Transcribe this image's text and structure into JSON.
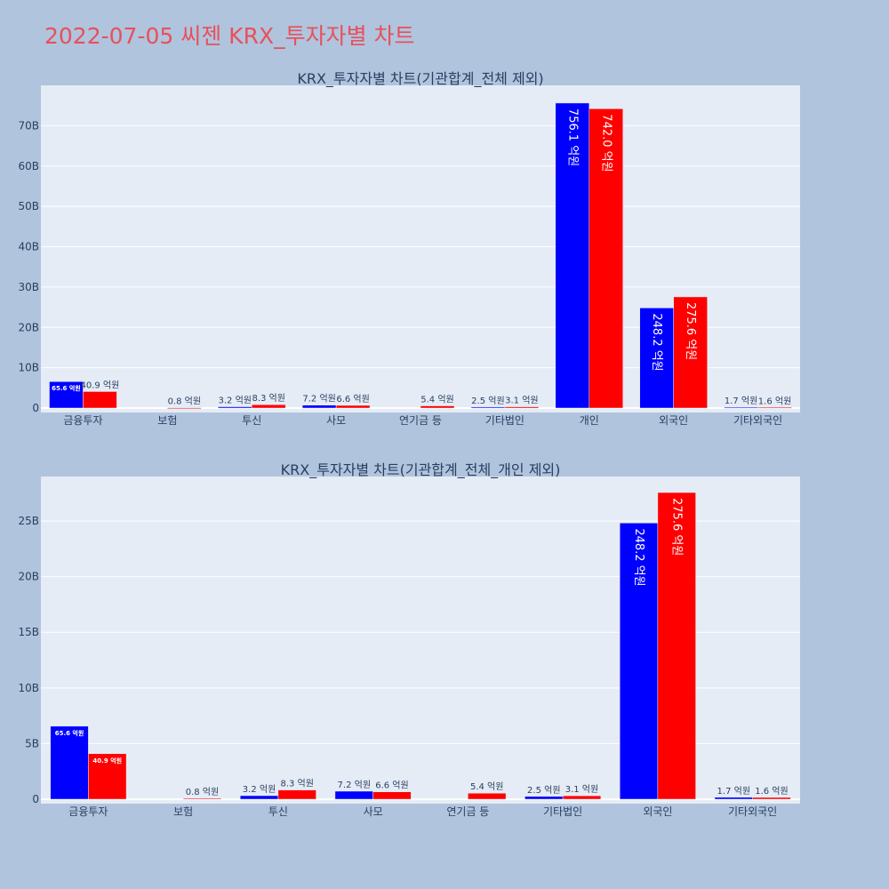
{
  "page": {
    "title": "2022-07-05 씨젠 KRX_투자자별 차트",
    "title_color": "#e8505b",
    "background": "#b0c4de",
    "plot_background": "#e5ecf6"
  },
  "colors": {
    "buy": "#0000ff",
    "sell": "#ff0000"
  },
  "chart_data": [
    {
      "type": "bar",
      "title": "KRX_투자자별 차트(기관합계_전체 제외)",
      "xlabel": "",
      "ylabel": "",
      "categories": [
        "금융투자",
        "보험",
        "투신",
        "사모",
        "연기금 등",
        "기타법인",
        "개인",
        "외국인",
        "기타외국인"
      ],
      "ylim": [
        0,
        80
      ],
      "yticks": [
        0,
        10,
        20,
        30,
        40,
        50,
        60,
        70
      ],
      "ytick_labels": [
        "0",
        "10B",
        "20B",
        "30B",
        "40B",
        "50B",
        "60B",
        "70B"
      ],
      "grid": true,
      "series": [
        {
          "color": "#0000ff",
          "values": [
            6.56,
            0,
            0.32,
            0.72,
            0,
            0.25,
            75.61,
            24.82,
            0.17
          ],
          "labels": [
            "65.6 억원",
            "",
            "3.2 억원",
            "7.2 억원",
            "",
            "2.5 억원",
            "756.1 억원",
            "248.2 억원",
            "1.7 억원"
          ]
        },
        {
          "color": "#ff0000",
          "values": [
            4.09,
            0.08,
            0.83,
            0.66,
            0.54,
            0.31,
            74.2,
            27.56,
            0.16
          ],
          "labels": [
            "40.9 억원",
            "0.8 억원",
            "8.3 억원",
            "6.6 억원",
            "5.4 억원",
            "3.1 억원",
            "742.0 억원",
            "275.6 억원",
            "1.6 억원"
          ]
        }
      ]
    },
    {
      "type": "bar",
      "title": "KRX_투자자별 차트(기관합계_전체_개인 제외)",
      "xlabel": "",
      "ylabel": "",
      "categories": [
        "금융투자",
        "보험",
        "투신",
        "사모",
        "연기금 등",
        "기타법인",
        "외국인",
        "기타외국인"
      ],
      "ylim": [
        0,
        29
      ],
      "yticks": [
        0,
        5,
        10,
        15,
        20,
        25
      ],
      "ytick_labels": [
        "0",
        "5B",
        "10B",
        "15B",
        "20B",
        "25B"
      ],
      "grid": true,
      "series": [
        {
          "color": "#0000ff",
          "values": [
            6.56,
            0,
            0.32,
            0.72,
            0,
            0.25,
            24.82,
            0.17
          ],
          "labels": [
            "65.6 억원",
            "",
            "3.2 억원",
            "7.2 억원",
            "",
            "2.5 억원",
            "248.2 억원",
            "1.7 억원"
          ]
        },
        {
          "color": "#ff0000",
          "values": [
            4.09,
            0.08,
            0.83,
            0.66,
            0.54,
            0.31,
            27.56,
            0.16
          ],
          "labels": [
            "40.9 억원",
            "0.8 억원",
            "8.3 억원",
            "6.6 억원",
            "5.4 억원",
            "3.1 억원",
            "275.6 억원",
            "1.6 억원"
          ]
        }
      ]
    }
  ]
}
